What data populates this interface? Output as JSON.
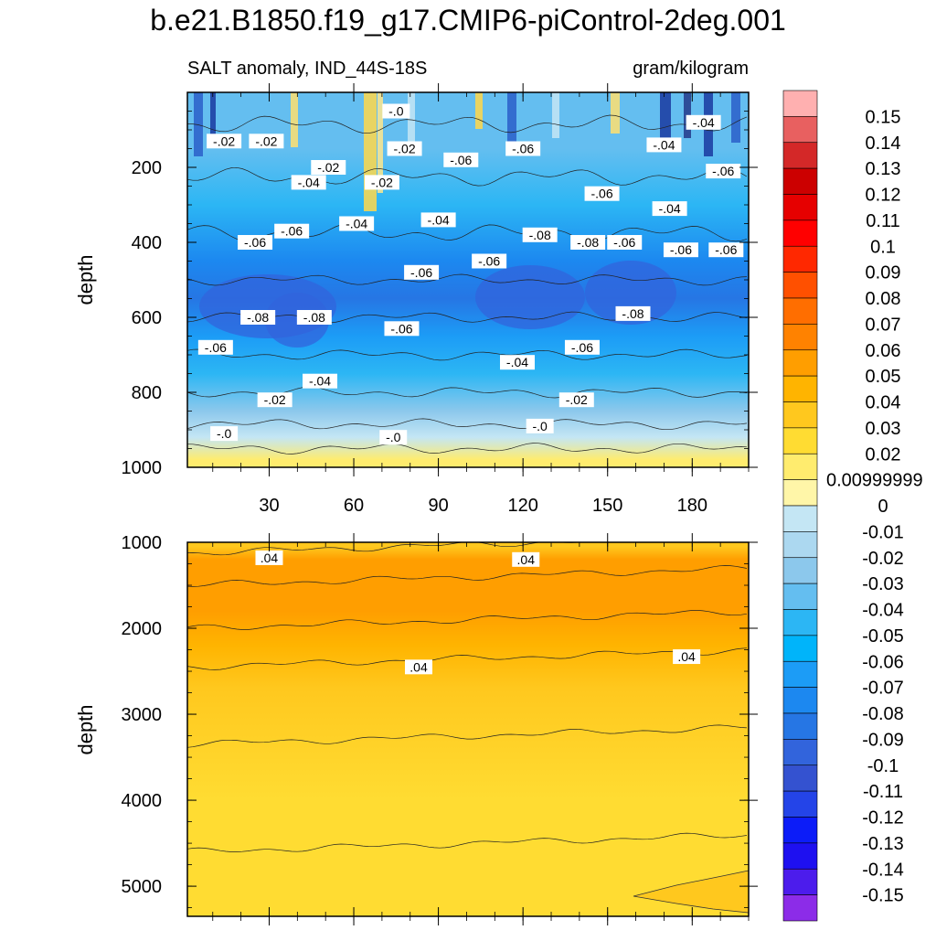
{
  "title": "b.e21.B1850.f19_g17.CMIP6-piControl-2deg.001",
  "subtitle_left": "SALT anomaly, IND_44S-18S",
  "subtitle_right": "gram/kilogram",
  "chart_data": {
    "type": "heatmap",
    "title": "b.e21.B1850.f19_g17.CMIP6-piControl-2deg.001",
    "subtitle": "SALT anomaly, IND_44S-18S",
    "units": "gram/kilogram",
    "ylabel": "depth",
    "x_range": [
      1,
      200
    ],
    "x_ticks": [
      30,
      60,
      90,
      120,
      150,
      180
    ],
    "panels": [
      {
        "name": "upper",
        "ylim": [
          0,
          1000
        ],
        "y_reversed": true,
        "y_ticks": [
          200,
          400,
          600,
          800,
          1000
        ],
        "approx_level_vs_depth": [
          {
            "depth": 20,
            "value": -0.04
          },
          {
            "depth": 150,
            "value": -0.04
          },
          {
            "depth": 300,
            "value": -0.05
          },
          {
            "depth": 450,
            "value": -0.08
          },
          {
            "depth": 550,
            "value": -0.09
          },
          {
            "depth": 650,
            "value": -0.07
          },
          {
            "depth": 750,
            "value": -0.05
          },
          {
            "depth": 850,
            "value": -0.03
          },
          {
            "depth": 920,
            "value": -0.01
          },
          {
            "depth": 980,
            "value": 0.01
          }
        ],
        "contour_labels": [
          {
            "x": 75,
            "y": 50,
            "text": "-.0"
          },
          {
            "x": 14,
            "y": 130,
            "text": "-.02"
          },
          {
            "x": 29,
            "y": 130,
            "text": "-.02"
          },
          {
            "x": 51,
            "y": 200,
            "text": "-.02"
          },
          {
            "x": 70,
            "y": 240,
            "text": "-.02"
          },
          {
            "x": 44,
            "y": 240,
            "text": "-.04"
          },
          {
            "x": 78,
            "y": 150,
            "text": "-.02"
          },
          {
            "x": 98,
            "y": 180,
            "text": "-.06"
          },
          {
            "x": 120,
            "y": 150,
            "text": "-.06"
          },
          {
            "x": 170,
            "y": 140,
            "text": "-.04"
          },
          {
            "x": 184,
            "y": 80,
            "text": "-.04"
          },
          {
            "x": 191,
            "y": 210,
            "text": "-.06"
          },
          {
            "x": 148,
            "y": 270,
            "text": "-.06"
          },
          {
            "x": 172,
            "y": 310,
            "text": "-.04"
          },
          {
            "x": 61,
            "y": 350,
            "text": "-.04"
          },
          {
            "x": 90,
            "y": 340,
            "text": "-.04"
          },
          {
            "x": 38,
            "y": 370,
            "text": "-.06"
          },
          {
            "x": 25,
            "y": 400,
            "text": "-.06"
          },
          {
            "x": 126,
            "y": 380,
            "text": "-.08"
          },
          {
            "x": 143,
            "y": 400,
            "text": "-.08"
          },
          {
            "x": 156,
            "y": 400,
            "text": "-.06"
          },
          {
            "x": 176,
            "y": 420,
            "text": "-.06"
          },
          {
            "x": 192,
            "y": 420,
            "text": "-.06"
          },
          {
            "x": 84,
            "y": 480,
            "text": "-.06"
          },
          {
            "x": 108,
            "y": 450,
            "text": "-.06"
          },
          {
            "x": 26,
            "y": 600,
            "text": "-.08"
          },
          {
            "x": 46,
            "y": 600,
            "text": "-.08"
          },
          {
            "x": 159,
            "y": 590,
            "text": "-.08"
          },
          {
            "x": 77,
            "y": 630,
            "text": "-.06"
          },
          {
            "x": 11,
            "y": 680,
            "text": "-.06"
          },
          {
            "x": 141,
            "y": 680,
            "text": "-.06"
          },
          {
            "x": 118,
            "y": 720,
            "text": "-.04"
          },
          {
            "x": 48,
            "y": 770,
            "text": "-.04"
          },
          {
            "x": 32,
            "y": 820,
            "text": "-.02"
          },
          {
            "x": 139,
            "y": 820,
            "text": "-.02"
          },
          {
            "x": 14,
            "y": 910,
            "text": "-.0"
          },
          {
            "x": 74,
            "y": 920,
            "text": "-.0"
          },
          {
            "x": 126,
            "y": 890,
            "text": "-.0"
          }
        ]
      },
      {
        "name": "lower",
        "ylim": [
          1000,
          5350
        ],
        "y_reversed": true,
        "y_ticks": [
          1000,
          2000,
          3000,
          4000,
          5000
        ],
        "approx_level_vs_depth": [
          {
            "depth": 1050,
            "value": 0.03
          },
          {
            "depth": 1200,
            "value": 0.05
          },
          {
            "depth": 1800,
            "value": 0.05
          },
          {
            "depth": 2200,
            "value": 0.04
          },
          {
            "depth": 2700,
            "value": 0.03
          },
          {
            "depth": 4000,
            "value": 0.02
          },
          {
            "depth": 5200,
            "value": 0.02
          }
        ],
        "contour_labels": [
          {
            "x": 30,
            "y": 1180,
            "text": ".04"
          },
          {
            "x": 121,
            "y": 1200,
            "text": ".04"
          },
          {
            "x": 83,
            "y": 2450,
            "text": ".04"
          },
          {
            "x": 178,
            "y": 2330,
            "text": ".04"
          }
        ]
      }
    ],
    "colorbar": {
      "labels": [
        "0.15",
        "0.14",
        "0.13",
        "0.12",
        "0.11",
        "0.1",
        "0.09",
        "0.08",
        "0.07",
        "0.06",
        "0.05",
        "0.04",
        "0.03",
        "0.02",
        "0.00999999",
        "0",
        "-0.01",
        "-0.02",
        "-0.03",
        "-0.04",
        "-0.05",
        "-0.06",
        "-0.07",
        "-0.08",
        "-0.09",
        "-0.1",
        "-0.11",
        "-0.12",
        "-0.13",
        "-0.14",
        "-0.15"
      ],
      "colors": [
        "#ffb0b0",
        "#e86060",
        "#d42828",
        "#cc0000",
        "#e60000",
        "#ff0000",
        "#ff2800",
        "#ff5000",
        "#ff6e00",
        "#ff8200",
        "#ff9e00",
        "#ffb400",
        "#ffc81e",
        "#ffdc32",
        "#ffec6e",
        "#fff6a8",
        "#c4e6f4",
        "#acd8f0",
        "#8cc8ec",
        "#64bef0",
        "#2cb6f4",
        "#00b4fa",
        "#1c9cf6",
        "#1c88f0",
        "#2676e4",
        "#3264dc",
        "#3452d0",
        "#2444e8",
        "#0c1cf8",
        "#1e10f0",
        "#4c1cec",
        "#8c2ce8"
      ]
    }
  }
}
